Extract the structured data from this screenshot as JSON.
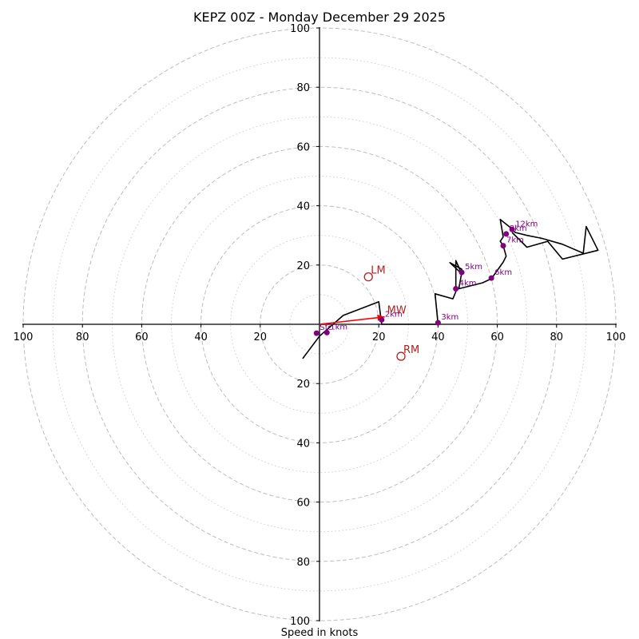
{
  "chart_data": {
    "type": "hodograph",
    "title": "KEPZ 00Z - Monday December 29 2025",
    "xlabel": "Speed in knots",
    "xlim": [
      -100,
      100
    ],
    "ylim": [
      -100,
      100
    ],
    "rings": {
      "major": [
        20,
        40,
        60,
        80,
        100
      ],
      "minor": [
        10,
        30,
        50,
        70,
        90
      ]
    },
    "x_ticks": [
      {
        "value": -100,
        "label": "100"
      },
      {
        "value": -80,
        "label": "80"
      },
      {
        "value": -60,
        "label": "60"
      },
      {
        "value": -40,
        "label": "40"
      },
      {
        "value": -20,
        "label": "20"
      },
      {
        "value": 20,
        "label": "20"
      },
      {
        "value": 40,
        "label": "40"
      },
      {
        "value": 60,
        "label": "60"
      },
      {
        "value": 80,
        "label": "80"
      },
      {
        "value": 100,
        "label": "100"
      }
    ],
    "y_ticks": [
      {
        "value": 100,
        "label": "100"
      },
      {
        "value": 80,
        "label": "80"
      },
      {
        "value": 60,
        "label": "60"
      },
      {
        "value": 40,
        "label": "40"
      },
      {
        "value": 20,
        "label": "20"
      },
      {
        "value": -20,
        "label": "20"
      },
      {
        "value": -40,
        "label": "40"
      },
      {
        "value": -60,
        "label": "60"
      },
      {
        "value": -80,
        "label": "80"
      },
      {
        "value": -100,
        "label": "100"
      }
    ],
    "trace": [
      [
        -5.7,
        -11.6
      ],
      [
        0,
        -4
      ],
      [
        8,
        3
      ],
      [
        20,
        7.6
      ],
      [
        21,
        0
      ],
      [
        25,
        0
      ],
      [
        40,
        0
      ],
      [
        39,
        10.3
      ],
      [
        45,
        8.6
      ],
      [
        46,
        11
      ],
      [
        46,
        16
      ],
      [
        46,
        21.5
      ],
      [
        48,
        17
      ],
      [
        47,
        18
      ],
      [
        44,
        20.8
      ],
      [
        48,
        18.6
      ],
      [
        48,
        17.5
      ],
      [
        47,
        12
      ],
      [
        55,
        14
      ],
      [
        58,
        15.4
      ],
      [
        62,
        21
      ],
      [
        63,
        23
      ],
      [
        62,
        26.5
      ],
      [
        61,
        28
      ],
      [
        62,
        29.5
      ],
      [
        61,
        35.4
      ],
      [
        64,
        33
      ],
      [
        66,
        31
      ],
      [
        70,
        30
      ],
      [
        75,
        29
      ],
      [
        82,
        27
      ],
      [
        89,
        24
      ],
      [
        90,
        33
      ],
      [
        94,
        25
      ],
      [
        82,
        22
      ],
      [
        77,
        28
      ],
      [
        70,
        26
      ],
      [
        65,
        31
      ]
    ],
    "height_markers": [
      {
        "label": "Sfc",
        "u": -1,
        "v": -3
      },
      {
        "label": "1km",
        "u": 2.5,
        "v": -2.8
      },
      {
        "label": "2km",
        "u": 21,
        "v": 1.5
      },
      {
        "label": "3km",
        "u": 40,
        "v": 0.5
      },
      {
        "label": "4km",
        "u": 46,
        "v": 12
      },
      {
        "label": "5km",
        "u": 48,
        "v": 17.5
      },
      {
        "label": "6km",
        "u": 58,
        "v": 15.6
      },
      {
        "label": "7km",
        "u": 62,
        "v": 26.5
      },
      {
        "label": "8km",
        "u": 63,
        "v": 30.5
      },
      {
        "label": "12km",
        "u": 65,
        "v": 32
      }
    ],
    "motion_markers": [
      {
        "label": "LM",
        "u": 16.5,
        "v": 16
      },
      {
        "label": "RM",
        "u": 27.5,
        "v": -10.8
      },
      {
        "label": "MW",
        "u": 22,
        "v": 2.5
      }
    ],
    "mean_wind_vector": {
      "from": [
        0,
        0
      ],
      "to": [
        22,
        2.5
      ]
    },
    "colors": {
      "trace": "#000000",
      "height_markers": "#800080",
      "motion_markers": "#b22222",
      "mean_wind": "#ff0000",
      "grid": "#bdbdbd"
    }
  }
}
